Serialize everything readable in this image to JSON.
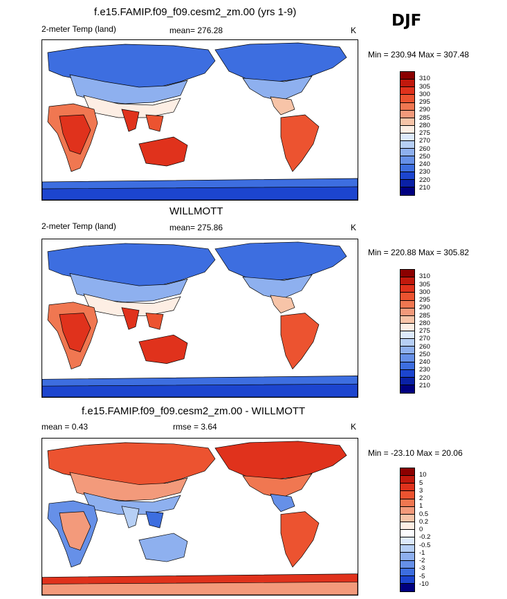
{
  "season": "DJF",
  "panels": [
    {
      "id": "model",
      "title": "f.e15.FAMIP.f09_f09.cesm2_zm.00 (yrs 1-9)",
      "left_label": "2-meter Temp (land)",
      "mid_label": "mean= 276.28",
      "rmse_label": "",
      "units": "K",
      "minmax": "Min = 230.94 Max = 307.48",
      "scale": "abs",
      "colorbar": {
        "levels": [
          "310",
          "305",
          "300",
          "295",
          "290",
          "285",
          "280",
          "275",
          "270",
          "260",
          "250",
          "240",
          "230",
          "220",
          "210"
        ],
        "colors": [
          "#8b0000",
          "#c1190d",
          "#e0321c",
          "#ec5330",
          "#f07751",
          "#f39a7b",
          "#f7c4a8",
          "#fdeee4",
          "#ddeafc",
          "#b6cff5",
          "#8eb0ef",
          "#6690e8",
          "#3d6ee0",
          "#1c45cf",
          "#0a21a6",
          "#000080"
        ]
      }
    },
    {
      "id": "obs",
      "title": "WILLMOTT",
      "left_label": "2-meter Temp (land)",
      "mid_label": "mean= 275.86",
      "rmse_label": "",
      "units": "K",
      "minmax": "Min = 220.88 Max = 305.82",
      "scale": "abs",
      "colorbar": {
        "levels": [
          "310",
          "305",
          "300",
          "295",
          "290",
          "285",
          "280",
          "275",
          "270",
          "260",
          "250",
          "240",
          "230",
          "220",
          "210"
        ],
        "colors": [
          "#8b0000",
          "#c1190d",
          "#e0321c",
          "#ec5330",
          "#f07751",
          "#f39a7b",
          "#f7c4a8",
          "#fdeee4",
          "#ddeafc",
          "#b6cff5",
          "#8eb0ef",
          "#6690e8",
          "#3d6ee0",
          "#1c45cf",
          "#0a21a6",
          "#000080"
        ]
      }
    },
    {
      "id": "diff",
      "title": "f.e15.FAMIP.f09_f09.cesm2_zm.00 - WILLMOTT",
      "left_label": "mean =   0.43",
      "mid_label": "rmse =   3.64",
      "rmse_label": "",
      "units": "K",
      "minmax": "Min = -23.10 Max =  20.06",
      "scale": "diff",
      "colorbar": {
        "levels": [
          "10",
          "5",
          "3",
          "2",
          "1",
          "0.5",
          "0.2",
          "0",
          "-0.2",
          "-0.5",
          "-1",
          "-2",
          "-3",
          "-5",
          "-10"
        ],
        "colors": [
          "#8b0000",
          "#c1190d",
          "#e0321c",
          "#ec5330",
          "#f07751",
          "#f39a7b",
          "#f7c4a8",
          "#fdeee4",
          "#fbfcff",
          "#ddeafc",
          "#b6cff5",
          "#8eb0ef",
          "#6690e8",
          "#3d6ee0",
          "#1c45cf",
          "#000080"
        ]
      }
    }
  ]
}
